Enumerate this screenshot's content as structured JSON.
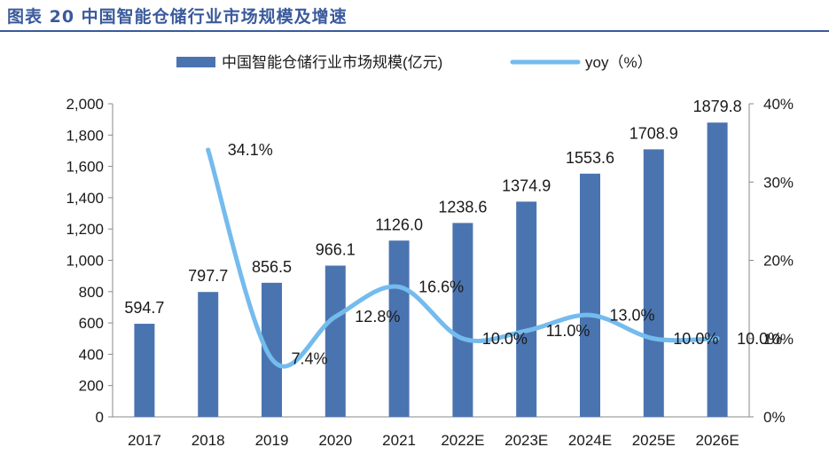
{
  "figure_title": "图表 20 中国智能仓储行业市场规模及增速",
  "colors": {
    "bar": "#4a74b0",
    "line": "#74bbee",
    "title": "#3a5a9c"
  },
  "chart_data": {
    "type": "bar+line",
    "categories": [
      "2017",
      "2018",
      "2019",
      "2020",
      "2021",
      "2022E",
      "2023E",
      "2024E",
      "2025E",
      "2026E"
    ],
    "series": [
      {
        "name": "中国智能仓储行业市场规模(亿元)",
        "type": "bar",
        "axis": "left",
        "values": [
          594.7,
          797.7,
          856.5,
          966.1,
          1126.0,
          1238.6,
          1374.9,
          1553.6,
          1708.9,
          1879.8
        ],
        "labels": [
          "594.7",
          "797.7",
          "856.5",
          "966.1",
          "1126.0",
          "1238.6",
          "1374.9",
          "1553.6",
          "1708.9",
          "1879.8"
        ]
      },
      {
        "name": "yoy（%）",
        "type": "line",
        "axis": "right",
        "values": [
          null,
          34.1,
          7.4,
          12.8,
          16.6,
          10.0,
          11.0,
          13.0,
          10.0,
          10.0
        ],
        "labels": [
          "",
          "34.1%",
          "7.4%",
          "12.8%",
          "16.6%",
          "10.0%",
          "11.0%",
          "13.0%",
          "10.0%",
          "10.0%"
        ]
      }
    ],
    "y_left": {
      "min": 0,
      "max": 2000,
      "step": 200,
      "ticks": [
        "0",
        "200",
        "400",
        "600",
        "800",
        "1,000",
        "1,200",
        "1,400",
        "1,600",
        "1,800",
        "2,000"
      ]
    },
    "y_right": {
      "min": 0,
      "max": 40,
      "step": 10,
      "ticks": [
        "0%",
        "10%",
        "20%",
        "30%",
        "40%"
      ]
    },
    "legend": "top",
    "grid": false
  }
}
